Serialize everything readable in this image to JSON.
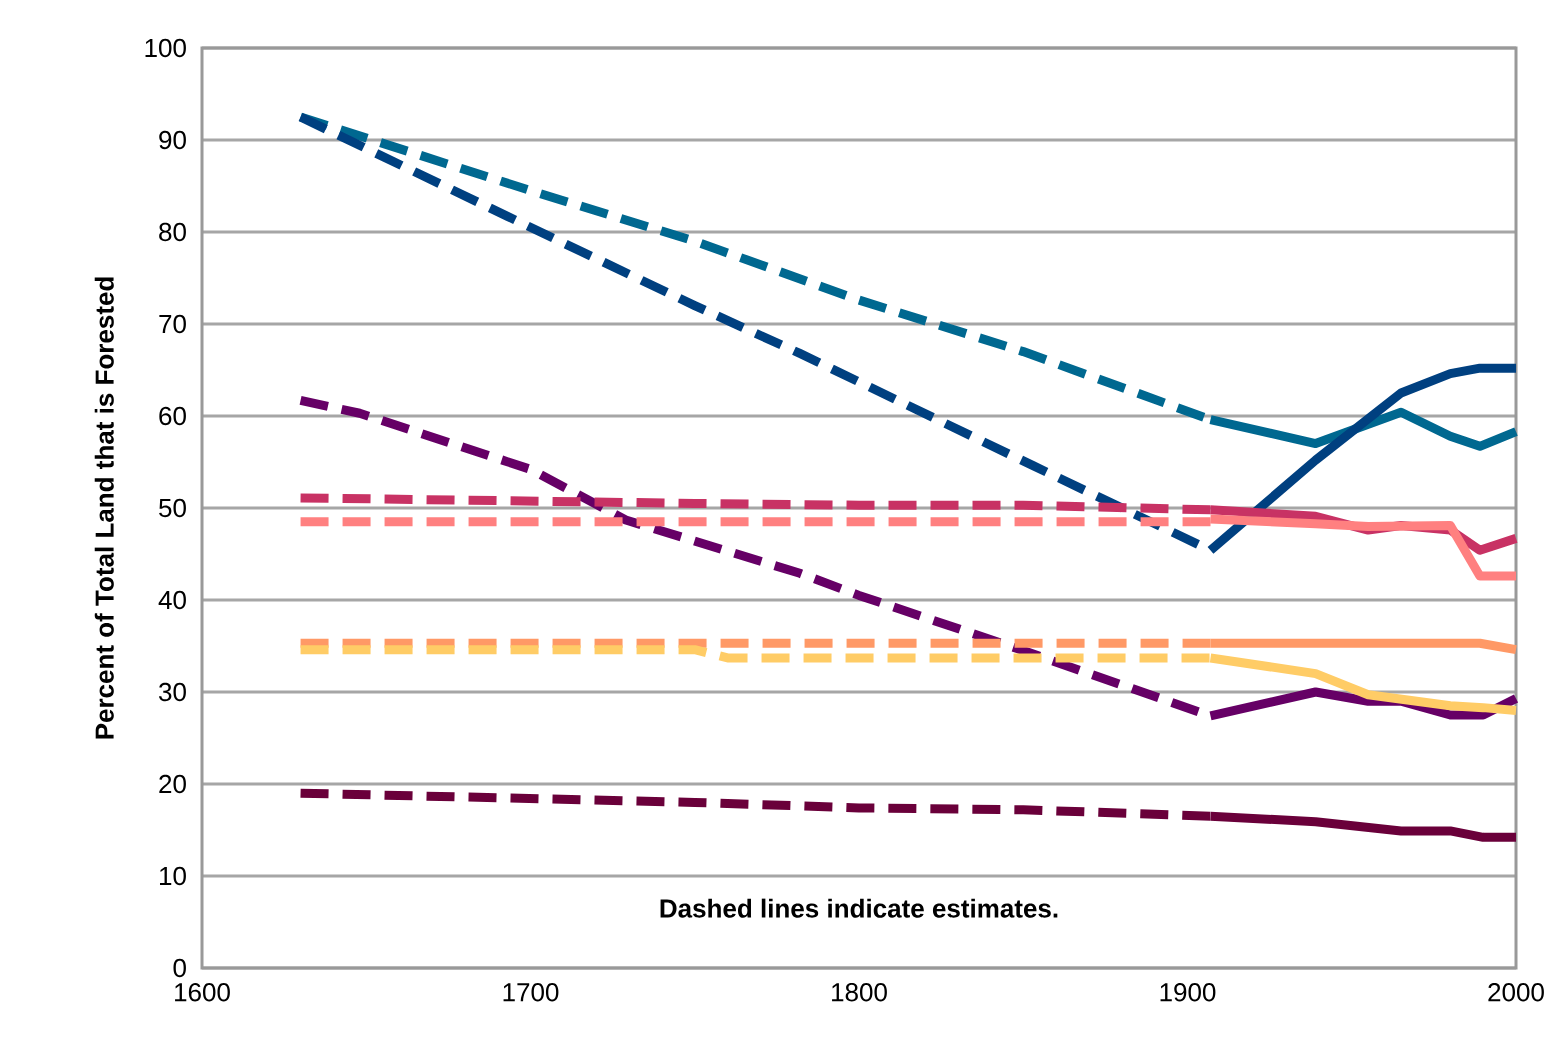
{
  "chart_data": {
    "type": "line",
    "ylabel": "Percent of Total Land that is Forested",
    "annotations": [
      "Dashed lines indicate estimates."
    ],
    "xlim": [
      1600,
      2000
    ],
    "ylim": [
      0,
      100
    ],
    "xticks": [
      1600,
      1700,
      1800,
      1900,
      2000
    ],
    "yticks": [
      0,
      10,
      20,
      30,
      40,
      50,
      60,
      70,
      80,
      90,
      100
    ],
    "grid": "y",
    "series": [
      {
        "color": "#006890",
        "line_style": "dashed",
        "x": [
          1630,
          1700,
          1750,
          1800,
          1850,
          1907
        ],
        "values": [
          92.5,
          84.5,
          79,
          72.6,
          67,
          59.6
        ]
      },
      {
        "color": "#006890",
        "line_style": "solid",
        "x": [
          1907,
          1939,
          1965,
          1980,
          1989,
          2000
        ],
        "values": [
          59.6,
          57,
          60.4,
          57.8,
          56.7,
          58.3
        ]
      },
      {
        "color": "#004080",
        "line_style": "dashed",
        "x": [
          1630,
          1693,
          1750,
          1782,
          1853,
          1907
        ],
        "values": [
          92.5,
          81.7,
          72,
          66.8,
          54.6,
          45.4
        ]
      },
      {
        "color": "#004080",
        "line_style": "solid",
        "x": [
          1907,
          1939,
          1965,
          1980,
          1989,
          2000
        ],
        "values": [
          45.4,
          55.2,
          62.5,
          64.6,
          65.2,
          65.2
        ]
      },
      {
        "color": "#660066",
        "line_style": "dashed",
        "x": [
          1630,
          1648,
          1700,
          1729,
          1782,
          1800,
          1850,
          1907
        ],
        "values": [
          61.7,
          60.3,
          54.2,
          48.7,
          42.9,
          40.5,
          34.5,
          27.4
        ]
      },
      {
        "color": "#660066",
        "line_style": "solid",
        "x": [
          1907,
          1939,
          1955,
          1965,
          1980,
          1990,
          2000
        ],
        "values": [
          27.4,
          30,
          29,
          29,
          27.5,
          27.5,
          29.3
        ]
      },
      {
        "color": "#c83264",
        "line_style": "dashed",
        "x": [
          1630,
          1750,
          1800,
          1850,
          1907
        ],
        "values": [
          51.1,
          50.5,
          50.3,
          50.3,
          49.8
        ]
      },
      {
        "color": "#c83264",
        "line_style": "solid",
        "x": [
          1907,
          1939,
          1955,
          1965,
          1980,
          1989,
          2000
        ],
        "values": [
          49.8,
          49.1,
          47.6,
          48.1,
          47.6,
          45.4,
          46.7
        ]
      },
      {
        "color": "#ff8080",
        "line_style": "dashed",
        "x": [
          1630,
          1750,
          1850,
          1907
        ],
        "values": [
          48.5,
          48.5,
          48.5,
          48.5
        ]
      },
      {
        "color": "#ff8080",
        "line_style": "solid",
        "x": [
          1907,
          1939,
          1955,
          1980,
          1989,
          2000
        ],
        "values": [
          48.8,
          48.3,
          48,
          48.1,
          42.6,
          42.6
        ]
      },
      {
        "color": "#ff9966",
        "line_style": "dashed",
        "x": [
          1630,
          1750,
          1850,
          1907
        ],
        "values": [
          35.3,
          35.3,
          35.3,
          35.3
        ]
      },
      {
        "color": "#ff9966",
        "line_style": "solid",
        "x": [
          1907,
          1989,
          2000
        ],
        "values": [
          35.3,
          35.3,
          34.6
        ]
      },
      {
        "color": "#ffcc66",
        "line_style": "dashed",
        "x": [
          1630,
          1750,
          1760,
          1907
        ],
        "values": [
          34.6,
          34.6,
          33.7,
          33.7
        ]
      },
      {
        "color": "#ffcc66",
        "line_style": "solid",
        "x": [
          1907,
          1939,
          1955,
          1980,
          1990,
          2000
        ],
        "values": [
          33.7,
          32,
          29.7,
          28.5,
          28.3,
          28
        ]
      },
      {
        "color": "#6a003a",
        "line_style": "dashed",
        "x": [
          1630,
          1690,
          1750,
          1800,
          1850,
          1907
        ],
        "values": [
          19,
          18.5,
          18,
          17.4,
          17.2,
          16.5
        ]
      },
      {
        "color": "#6a003a",
        "line_style": "solid",
        "x": [
          1907,
          1939,
          1965,
          1980,
          1990,
          2000
        ],
        "values": [
          16.5,
          15.9,
          14.9,
          14.9,
          14.2,
          14.2
        ]
      }
    ]
  }
}
